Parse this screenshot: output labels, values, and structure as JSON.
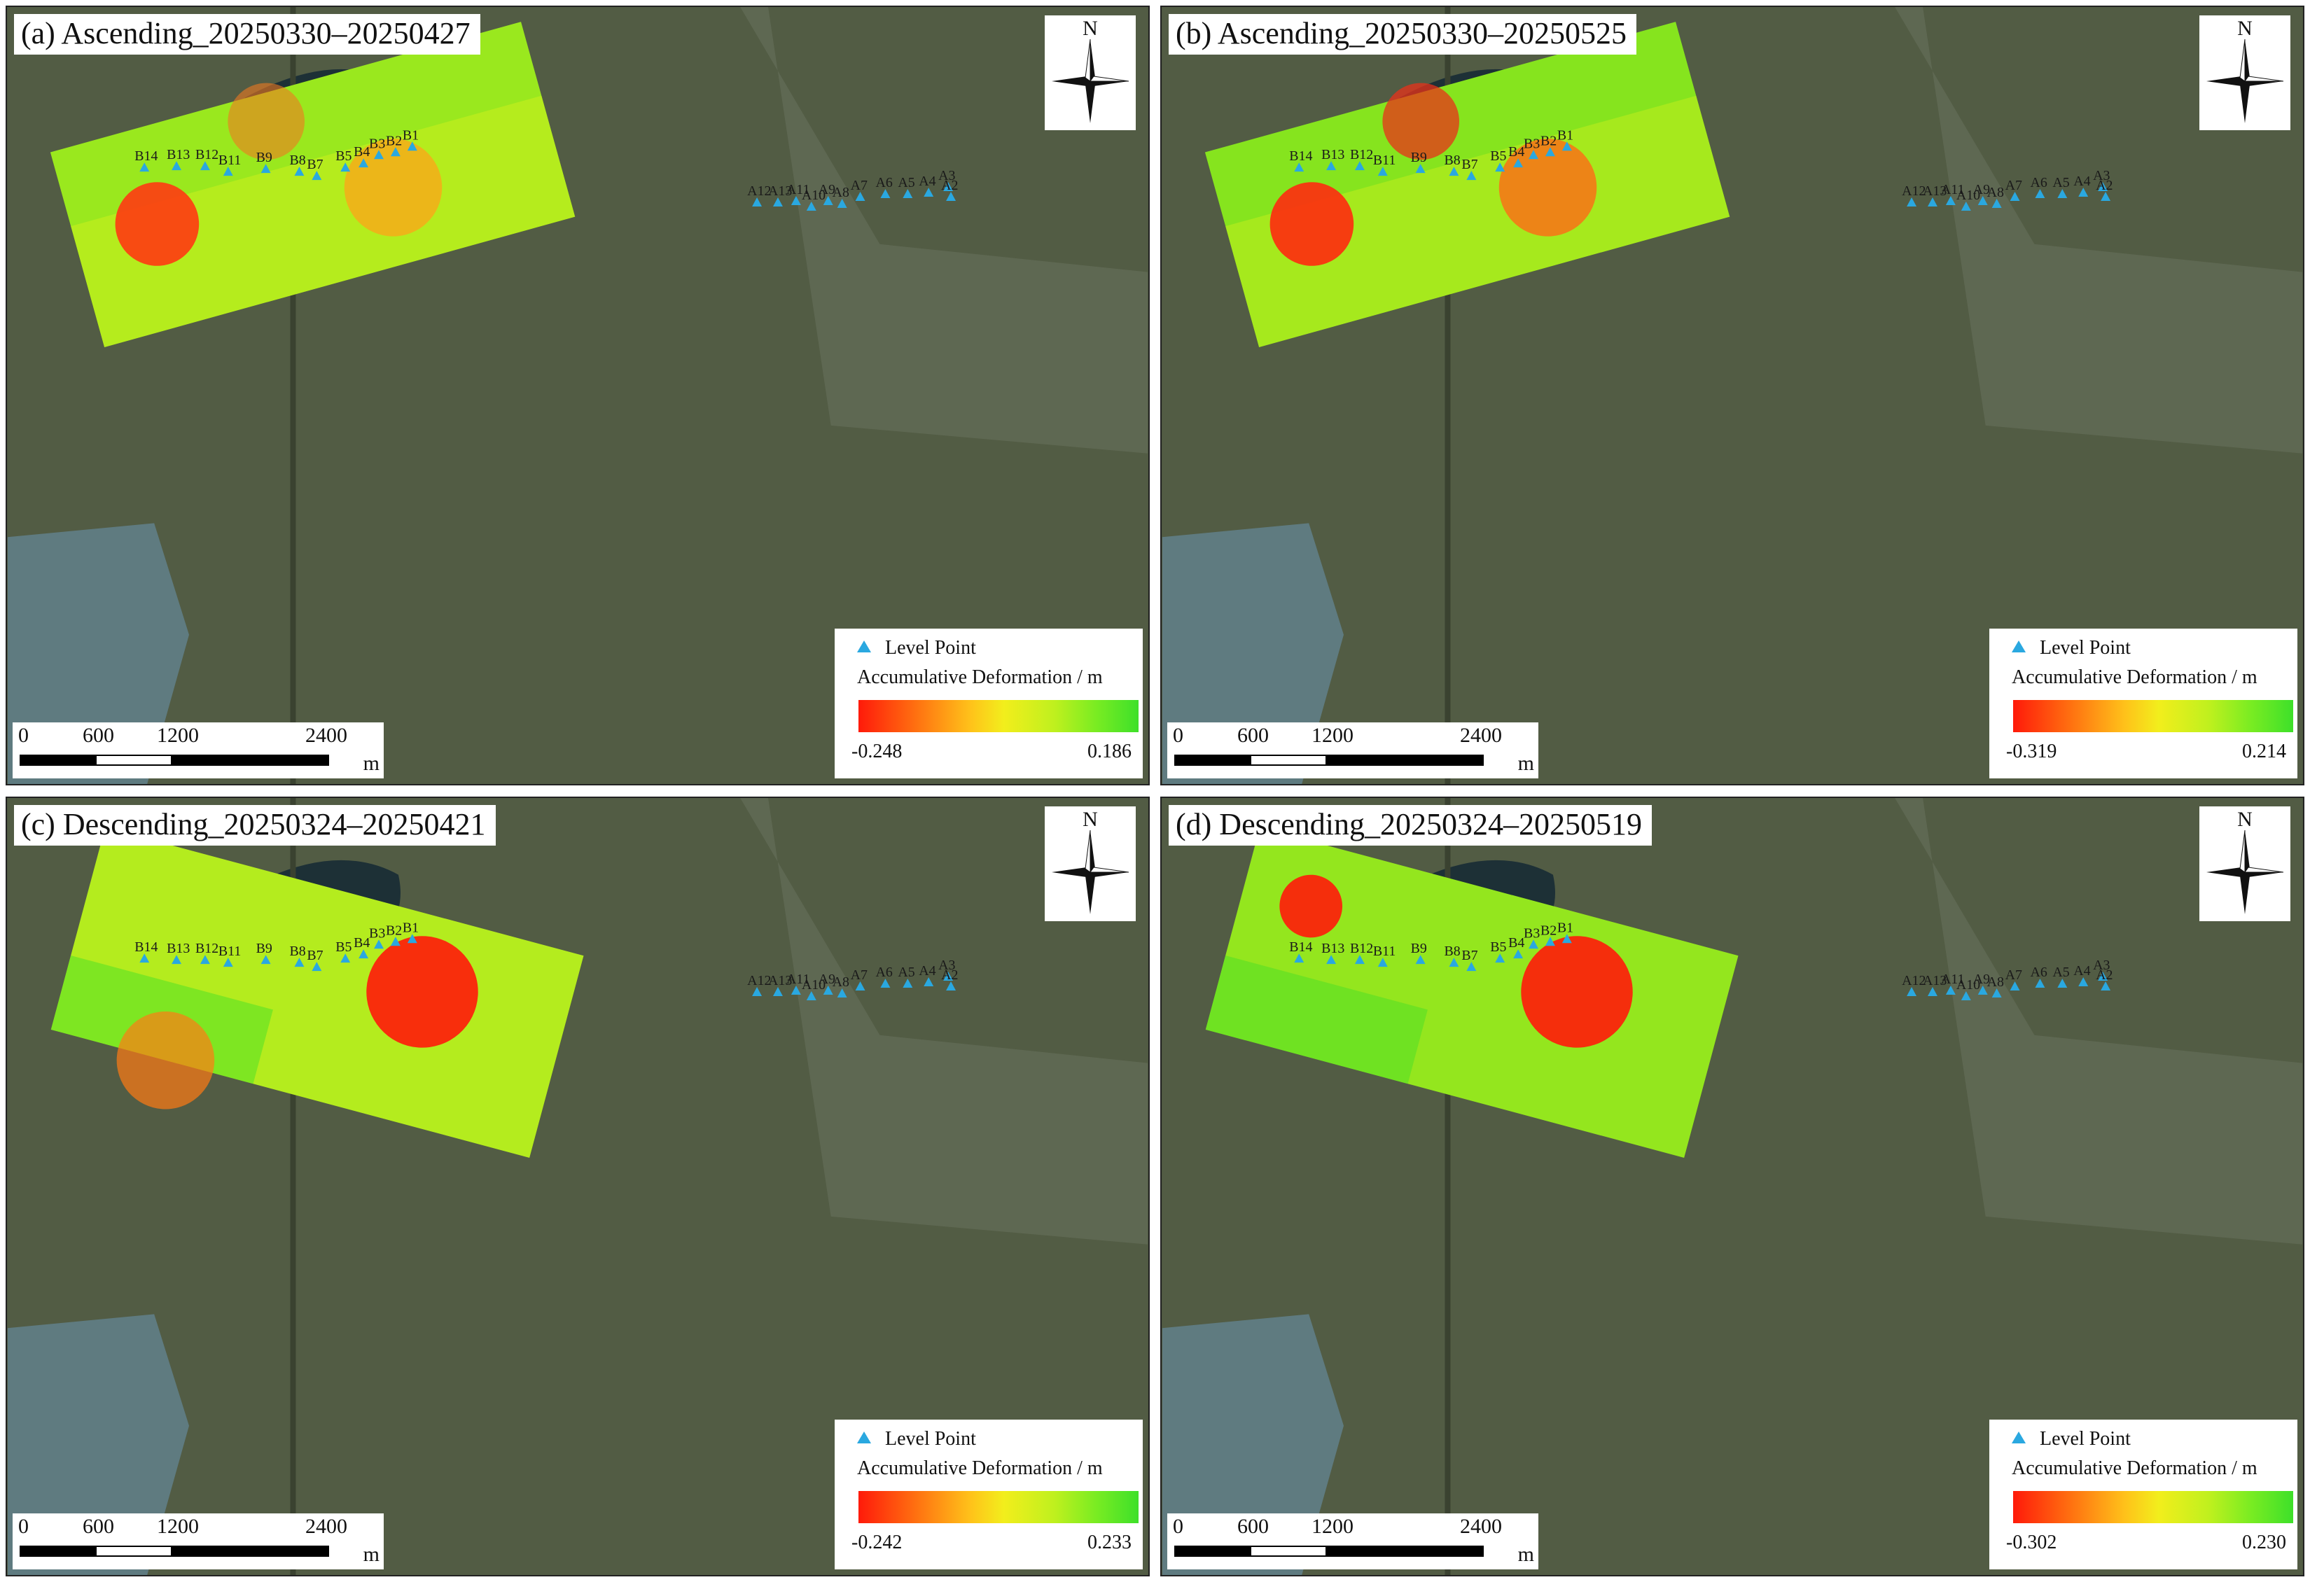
{
  "figure": {
    "panels": [
      {
        "id": "a",
        "title": "(a) Ascending_20250330–20250427",
        "orbit": "ascending",
        "legend_min": "-0.248",
        "legend_max": "0.186",
        "footprint_angle_deg": 15.5,
        "hotspots": [
          {
            "name": "B-line subsidence bowl",
            "level": 1.0,
            "radius": 0.58
          },
          {
            "name": "A-line subsidence bowl",
            "level": 0.45,
            "radius": 0.62
          },
          {
            "name": "north-central patchy zone",
            "level": 0.7,
            "radius": 0.45
          }
        ]
      },
      {
        "id": "b",
        "title": "(b) Ascending_20250330–20250525",
        "orbit": "ascending",
        "legend_min": "-0.319",
        "legend_max": "0.214",
        "footprint_angle_deg": 15.5,
        "hotspots": [
          {
            "name": "B-line subsidence bowl",
            "level": 1.0,
            "radius": 0.58
          },
          {
            "name": "A-line subsidence bowl",
            "level": 0.6,
            "radius": 0.62
          },
          {
            "name": "north-central patchy zone",
            "level": 0.95,
            "radius": 0.45
          }
        ]
      },
      {
        "id": "c",
        "title": "(c) Descending_20250324–20250421",
        "orbit": "descending",
        "legend_min": "-0.242",
        "legend_max": "0.233",
        "footprint_angle_deg": -15.0,
        "hotspots": [
          {
            "name": "A-line subsidence bowl",
            "level": 1.0,
            "radius": 0.75
          },
          {
            "name": "south-west noisy zone",
            "level": 0.55,
            "radius": 0.5
          }
        ]
      },
      {
        "id": "d",
        "title": "(d) Descending_20250324–20250519",
        "orbit": "descending",
        "legend_min": "-0.302",
        "legend_max": "0.230",
        "footprint_angle_deg": -15.0,
        "hotspots": [
          {
            "name": "B-line subsidence bowl",
            "level": 1.0,
            "radius": 0.42
          },
          {
            "name": "A-line subsidence bowl",
            "level": 1.0,
            "radius": 0.75
          }
        ]
      }
    ],
    "north_label": "N",
    "legend": {
      "point_label": "Level Point",
      "title": "Accumulative Deformation /   m",
      "colors": [
        "#ff1a0a",
        "#ff6e10",
        "#ffc21a",
        "#f2ee1c",
        "#bff01e",
        "#79ec22",
        "#3ee02a"
      ]
    },
    "scale": {
      "ticks": [
        "0",
        "600",
        "1200",
        "2400"
      ],
      "unit": "m"
    },
    "level_points": {
      "b_line": [
        "B14",
        "B13",
        "B12",
        "B11",
        "B9",
        "B8",
        "B7",
        "B5",
        "B4",
        "B3",
        "B2",
        "B1"
      ],
      "a_line": [
        "A12",
        "A13",
        "A11",
        "A10",
        "A9",
        "A8",
        "A7",
        "A6",
        "A5",
        "A4",
        "A3",
        "A2"
      ],
      "marker_color": "#2aa8e0"
    }
  }
}
